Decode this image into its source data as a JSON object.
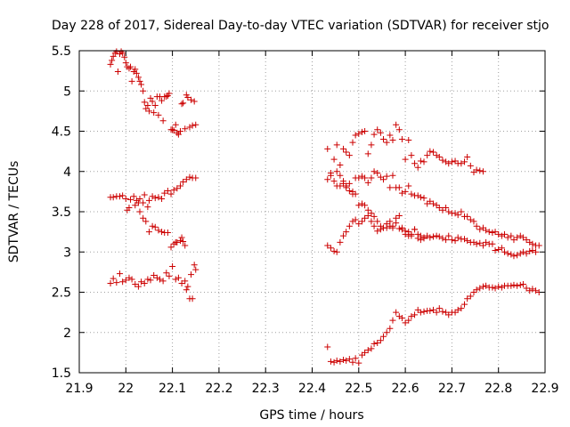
{
  "chart_data": {
    "type": "scatter",
    "title": "Day 228 of 2017, Sidereal Day-to-day VTEC variation (SDTVAR) for receiver stjo",
    "xlabel": "GPS time / hours",
    "ylabel": "SDTVAR / TECUs",
    "xlim": [
      21.9,
      22.9
    ],
    "ylim": [
      1.5,
      5.5
    ],
    "xticks": [
      "21.9",
      "22",
      "22.1",
      "22.2",
      "22.3",
      "22.4",
      "22.5",
      "22.6",
      "22.7",
      "22.8",
      "22.9"
    ],
    "yticks": [
      "1.5",
      "2",
      "2.5",
      "3",
      "3.5",
      "4",
      "4.5",
      "5",
      "5.5"
    ],
    "grid": true,
    "marker": "+",
    "color": "#cc0000",
    "series": [
      {
        "name": "trace-1",
        "x": [
          21.967,
          21.97,
          21.973,
          21.977,
          21.98,
          21.983,
          21.987,
          21.99,
          21.993,
          21.997,
          22.0,
          22.003,
          22.007,
          22.01,
          22.013,
          22.017,
          22.02,
          22.023,
          22.027,
          22.03,
          22.033,
          22.037,
          22.04,
          22.043,
          22.047,
          22.05,
          22.053,
          22.057,
          22.06,
          22.063,
          22.067,
          22.07,
          22.073,
          22.077,
          22.08,
          22.083,
          22.087,
          22.09,
          22.093,
          22.097,
          22.1,
          22.103,
          22.107,
          22.11,
          22.113,
          22.117,
          22.12,
          22.123,
          22.127,
          22.13,
          22.133,
          22.137,
          22.14,
          22.143,
          22.147,
          22.15
        ],
        "y": [
          5.33,
          5.38,
          5.43,
          5.47,
          5.49,
          5.24,
          5.46,
          5.49,
          5.47,
          5.42,
          5.35,
          5.3,
          5.28,
          5.3,
          5.12,
          5.24,
          5.27,
          5.22,
          5.17,
          5.12,
          5.08,
          5.0,
          4.86,
          4.78,
          4.82,
          4.75,
          4.91,
          4.87,
          4.73,
          4.82,
          4.93,
          4.7,
          4.93,
          4.88,
          4.63,
          4.93,
          4.93,
          4.94,
          4.97,
          4.52,
          4.52,
          4.51,
          4.58,
          4.48,
          4.46,
          4.5,
          4.84,
          4.85,
          4.53,
          4.95,
          4.92,
          4.55,
          4.89,
          4.57,
          4.87,
          4.58
        ]
      },
      {
        "name": "trace-2",
        "x": [
          21.967,
          21.973,
          21.98,
          21.987,
          21.993,
          22.0,
          22.003,
          22.007,
          22.01,
          22.017,
          22.02,
          22.023,
          22.027,
          22.03,
          22.037,
          22.04,
          22.047,
          22.05,
          22.057,
          22.063,
          22.07,
          22.077,
          22.083,
          22.09,
          22.097,
          22.103,
          22.11,
          22.117,
          22.123,
          22.13,
          22.137,
          22.143,
          22.15
        ],
        "y": [
          3.68,
          3.68,
          3.69,
          3.69,
          3.7,
          3.66,
          3.52,
          3.55,
          3.65,
          3.69,
          3.58,
          3.64,
          3.61,
          3.66,
          3.61,
          3.71,
          3.56,
          3.64,
          3.69,
          3.67,
          3.68,
          3.66,
          3.73,
          3.76,
          3.72,
          3.77,
          3.79,
          3.82,
          3.87,
          3.9,
          3.93,
          3.92,
          3.92
        ]
      },
      {
        "name": "trace-3",
        "x": [
          22.03,
          22.037,
          22.043,
          22.05,
          22.057,
          22.063,
          22.07,
          22.077,
          22.083,
          22.09,
          22.097,
          22.103,
          22.107,
          22.11,
          22.117,
          22.12,
          22.123,
          22.127,
          22.13,
          22.137,
          22.143,
          22.15
        ],
        "y": [
          3.5,
          3.42,
          3.38,
          3.25,
          3.32,
          3.31,
          3.27,
          3.25,
          3.24,
          3.24,
          3.06,
          3.1,
          3.12,
          3.12,
          3.14,
          3.18,
          3.13,
          3.08,
          2.53,
          2.42,
          2.42,
          2.78
        ]
      },
      {
        "name": "trace-4",
        "x": [
          21.967,
          21.973,
          21.98,
          21.987,
          21.993,
          22.0,
          22.007,
          22.013,
          22.02,
          22.027,
          22.033,
          22.04,
          22.047,
          22.053,
          22.06,
          22.067,
          22.073,
          22.08,
          22.087,
          22.093,
          22.1,
          22.107,
          22.113,
          22.12,
          22.127,
          22.133,
          22.14,
          22.147
        ],
        "y": [
          2.61,
          2.67,
          2.62,
          2.73,
          2.63,
          2.65,
          2.68,
          2.66,
          2.6,
          2.57,
          2.63,
          2.61,
          2.66,
          2.65,
          2.71,
          2.68,
          2.66,
          2.64,
          2.74,
          2.7,
          2.82,
          2.66,
          2.68,
          2.61,
          2.64,
          2.57,
          2.72,
          2.84
        ]
      },
      {
        "name": "trace-5",
        "x": [
          22.433,
          22.44,
          22.447,
          22.453,
          22.46,
          22.467,
          22.473,
          22.48,
          22.487,
          22.493,
          22.5,
          22.507,
          22.513,
          22.52,
          22.527,
          22.533,
          22.54,
          22.547,
          22.553,
          22.56,
          22.567,
          22.573,
          22.58,
          22.587,
          22.593,
          22.6,
          22.607,
          22.613,
          22.62,
          22.627,
          22.633,
          22.64,
          22.647,
          22.653,
          22.66,
          22.667,
          22.673,
          22.68,
          22.687,
          22.693,
          22.7,
          22.707,
          22.713,
          22.72,
          22.727,
          22.733,
          22.74,
          22.747,
          22.753,
          22.76,
          22.767
        ],
        "y": [
          4.28,
          3.98,
          4.15,
          4.33,
          4.08,
          4.28,
          4.24,
          4.2,
          4.36,
          4.45,
          4.47,
          4.49,
          4.5,
          4.22,
          4.33,
          4.46,
          4.52,
          4.48,
          4.4,
          4.36,
          4.45,
          4.39,
          4.58,
          4.52,
          4.4,
          4.15,
          4.39,
          4.2,
          4.1,
          4.05,
          4.13,
          4.12,
          4.2,
          4.25,
          4.24,
          4.2,
          4.18,
          4.14,
          4.12,
          4.1,
          4.12,
          4.13,
          4.1,
          4.1,
          4.12,
          4.18,
          4.07,
          3.99,
          4.02,
          4.01,
          4.0
        ]
      },
      {
        "name": "trace-6",
        "x": [
          22.433,
          22.44,
          22.447,
          22.453,
          22.46,
          22.467,
          22.473,
          22.48,
          22.487,
          22.493,
          22.5,
          22.507,
          22.513,
          22.52,
          22.527,
          22.533,
          22.54,
          22.547,
          22.553,
          22.56,
          22.567,
          22.573,
          22.58,
          22.587,
          22.593,
          22.6,
          22.607,
          22.613,
          22.62,
          22.627,
          22.633,
          22.64,
          22.647,
          22.653,
          22.66,
          22.667,
          22.673,
          22.68,
          22.687,
          22.693,
          22.7,
          22.707,
          22.713,
          22.72,
          22.727,
          22.733,
          22.74,
          22.747,
          22.753,
          22.76,
          22.767,
          22.773,
          22.78,
          22.787,
          22.793,
          22.8,
          22.807,
          22.813,
          22.82,
          22.827,
          22.833,
          22.84,
          22.847,
          22.853,
          22.86,
          22.867,
          22.873,
          22.88
        ],
        "y": [
          3.9,
          3.95,
          3.88,
          3.82,
          3.82,
          3.85,
          3.8,
          3.76,
          3.72,
          3.72,
          3.58,
          3.6,
          3.58,
          3.52,
          3.48,
          3.44,
          3.38,
          3.32,
          3.3,
          3.3,
          3.32,
          3.3,
          3.36,
          3.29,
          3.3,
          3.26,
          3.2,
          3.22,
          3.28,
          3.17,
          3.15,
          3.18,
          3.2,
          3.18,
          3.19,
          3.2,
          3.19,
          3.17,
          3.15,
          3.2,
          3.15,
          3.14,
          3.18,
          3.16,
          3.16,
          3.14,
          3.12,
          3.12,
          3.1,
          3.11,
          3.08,
          3.12,
          3.1,
          3.1,
          3.02,
          3.03,
          3.05,
          3.0,
          2.98,
          2.97,
          2.95,
          2.96,
          2.98,
          3.0,
          2.98,
          3.01,
          3.02,
          3.0
        ]
      },
      {
        "name": "trace-7",
        "x": [
          22.453,
          22.46,
          22.467,
          22.473,
          22.48,
          22.487,
          22.493,
          22.5,
          22.507,
          22.513,
          22.52,
          22.527,
          22.533,
          22.54,
          22.547,
          22.553,
          22.56,
          22.567,
          22.573,
          22.58,
          22.587,
          22.593,
          22.6,
          22.607,
          22.613,
          22.62,
          22.627,
          22.633,
          22.64,
          22.647,
          22.653,
          22.66,
          22.667,
          22.673,
          22.68,
          22.687,
          22.693,
          22.7,
          22.707,
          22.713,
          22.72,
          22.727,
          22.733,
          22.74,
          22.747,
          22.753,
          22.76,
          22.767,
          22.773,
          22.78,
          22.787,
          22.793,
          22.8,
          22.807,
          22.813,
          22.82,
          22.827,
          22.833,
          22.84,
          22.847,
          22.853,
          22.86,
          22.867,
          22.873,
          22.88,
          22.887
        ],
        "y": [
          4.0,
          3.95,
          3.88,
          3.82,
          3.85,
          3.75,
          3.92,
          3.92,
          3.94,
          3.92,
          3.86,
          3.92,
          4.0,
          3.98,
          3.93,
          3.9,
          3.94,
          3.8,
          3.95,
          3.8,
          3.8,
          3.73,
          3.75,
          3.82,
          3.72,
          3.7,
          3.7,
          3.68,
          3.67,
          3.6,
          3.63,
          3.6,
          3.58,
          3.55,
          3.52,
          3.55,
          3.5,
          3.48,
          3.48,
          3.46,
          3.5,
          3.44,
          3.44,
          3.4,
          3.38,
          3.32,
          3.28,
          3.3,
          3.27,
          3.25,
          3.24,
          3.25,
          3.22,
          3.2,
          3.22,
          3.18,
          3.2,
          3.15,
          3.18,
          3.2,
          3.18,
          3.15,
          3.12,
          3.1,
          3.08,
          3.08
        ]
      },
      {
        "name": "trace-8",
        "x": [
          22.433,
          22.44,
          22.447,
          22.453,
          22.46,
          22.467,
          22.473,
          22.48,
          22.487,
          22.493,
          22.5,
          22.507,
          22.513,
          22.52,
          22.527,
          22.533,
          22.54,
          22.547,
          22.553,
          22.56,
          22.567,
          22.573,
          22.58,
          22.587,
          22.593,
          22.6,
          22.607,
          22.613,
          22.62,
          22.627,
          22.633,
          22.64
        ],
        "y": [
          3.08,
          3.05,
          3.01,
          3.0,
          3.12,
          3.2,
          3.25,
          3.32,
          3.38,
          3.4,
          3.35,
          3.38,
          3.42,
          3.45,
          3.38,
          3.32,
          3.26,
          3.28,
          3.3,
          3.35,
          3.38,
          3.32,
          3.42,
          3.45,
          3.28,
          3.22,
          3.25,
          3.2,
          3.28,
          3.22,
          3.2,
          3.17
        ]
      },
      {
        "name": "trace-9",
        "x": [
          22.433,
          22.44,
          22.447,
          22.453,
          22.46,
          22.467,
          22.473,
          22.48,
          22.487,
          22.493,
          22.5,
          22.507,
          22.513,
          22.52,
          22.527,
          22.533,
          22.54,
          22.547,
          22.553,
          22.56,
          22.567,
          22.573,
          22.58,
          22.587,
          22.593,
          22.6,
          22.607,
          22.613,
          22.62,
          22.627,
          22.633,
          22.64,
          22.647,
          22.653,
          22.66,
          22.667,
          22.673,
          22.68,
          22.687,
          22.693,
          22.7,
          22.707,
          22.713,
          22.72,
          22.727,
          22.733,
          22.74,
          22.747,
          22.753,
          22.76,
          22.767,
          22.773,
          22.78,
          22.787,
          22.793,
          22.8,
          22.807,
          22.813,
          22.82,
          22.827,
          22.833,
          22.84,
          22.847,
          22.853,
          22.86,
          22.867,
          22.873,
          22.88,
          22.887
        ],
        "y": [
          1.82,
          1.64,
          1.63,
          1.65,
          1.64,
          1.66,
          1.65,
          1.67,
          1.63,
          1.68,
          1.62,
          1.72,
          1.75,
          1.78,
          1.8,
          1.86,
          1.87,
          1.9,
          1.95,
          2.0,
          2.05,
          2.15,
          2.25,
          2.2,
          2.18,
          2.12,
          2.15,
          2.2,
          2.22,
          2.28,
          2.25,
          2.26,
          2.27,
          2.27,
          2.28,
          2.25,
          2.3,
          2.26,
          2.25,
          2.22,
          2.25,
          2.25,
          2.28,
          2.3,
          2.35,
          2.42,
          2.45,
          2.5,
          2.53,
          2.55,
          2.57,
          2.58,
          2.56,
          2.56,
          2.55,
          2.57,
          2.56,
          2.58,
          2.58,
          2.58,
          2.59,
          2.58,
          2.59,
          2.6,
          2.55,
          2.52,
          2.54,
          2.52,
          2.5
        ]
      }
    ]
  }
}
